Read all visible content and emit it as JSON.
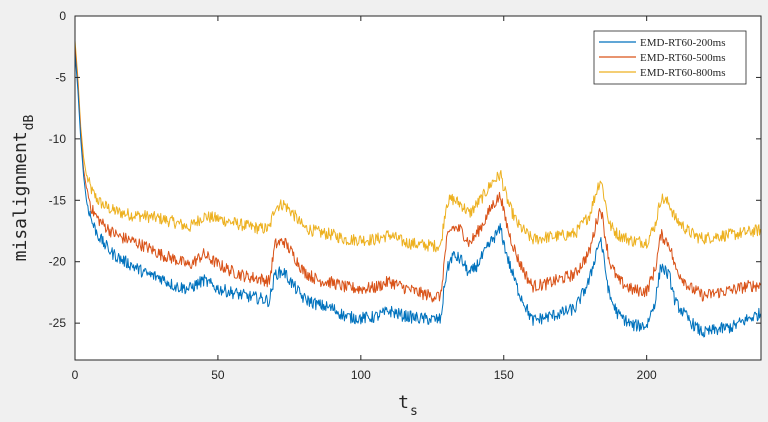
{
  "chart_data": {
    "type": "line",
    "xlabel": "t",
    "xlabel_sub": "s",
    "ylabel": "misalignment",
    "ylabel_sub": "dB",
    "xlim": [
      0,
      240
    ],
    "ylim": [
      -28,
      0
    ],
    "xticks": [
      0,
      50,
      100,
      150,
      200
    ],
    "yticks": [
      0,
      -5,
      -10,
      -15,
      -20,
      -25
    ],
    "grid": false,
    "legend_position": "top-right",
    "series": [
      {
        "name": "EMD-RT60-200ms",
        "color": "#0072BD",
        "x": [
          0,
          1,
          2,
          3,
          4,
          6,
          8,
          10,
          13,
          16,
          20,
          25,
          30,
          35,
          40,
          45,
          50,
          55,
          60,
          65,
          68,
          70,
          73,
          76,
          80,
          85,
          90,
          95,
          100,
          105,
          110,
          115,
          120,
          125,
          128,
          129,
          130,
          132,
          135,
          138,
          140,
          143,
          146,
          149,
          150,
          152,
          155,
          158,
          160,
          165,
          170,
          175,
          180,
          183,
          184,
          185,
          187,
          190,
          195,
          200,
          203,
          205,
          208,
          210,
          215,
          218,
          220,
          225,
          230,
          235,
          240
        ],
        "y": [
          -3,
          -6,
          -10,
          -13,
          -15,
          -16.8,
          -17.8,
          -18.5,
          -19.3,
          -19.8,
          -20.3,
          -21,
          -21.3,
          -22,
          -22.2,
          -21.5,
          -22.2,
          -22.5,
          -22.8,
          -23,
          -23.2,
          -21,
          -20.8,
          -21.8,
          -23,
          -23.5,
          -23.8,
          -24.5,
          -24.6,
          -24.5,
          -24,
          -24.4,
          -24.6,
          -24.7,
          -24.7,
          -22.5,
          -20.8,
          -19.5,
          -19.8,
          -21,
          -20.5,
          -19.4,
          -18.2,
          -17.3,
          -18.5,
          -20.2,
          -22.3,
          -23.8,
          -24.8,
          -24.5,
          -24.2,
          -23.8,
          -21.5,
          -18.6,
          -18.2,
          -19.8,
          -22.8,
          -24.3,
          -25.2,
          -25.2,
          -23.2,
          -20.3,
          -21.2,
          -23.3,
          -24.8,
          -25.5,
          -25.8,
          -25.5,
          -25.3,
          -24.7,
          -24.2
        ]
      },
      {
        "name": "EMD-RT60-500ms",
        "color": "#D95319",
        "x": [
          0,
          1,
          2,
          3,
          4,
          6,
          8,
          10,
          13,
          16,
          20,
          25,
          30,
          35,
          40,
          45,
          50,
          55,
          60,
          65,
          68,
          70,
          73,
          76,
          80,
          85,
          90,
          95,
          100,
          105,
          110,
          115,
          120,
          125,
          128,
          129,
          130,
          132,
          135,
          138,
          140,
          143,
          146,
          149,
          150,
          152,
          155,
          158,
          160,
          165,
          170,
          175,
          180,
          183,
          184,
          185,
          187,
          190,
          195,
          200,
          203,
          205,
          208,
          210,
          215,
          218,
          220,
          225,
          230,
          235,
          240
        ],
        "y": [
          -2.5,
          -5.5,
          -9.5,
          -12.5,
          -14,
          -15.8,
          -16.5,
          -17,
          -17.6,
          -18,
          -18.3,
          -18.8,
          -19.4,
          -19.8,
          -20.3,
          -19.4,
          -20.2,
          -20.8,
          -21.2,
          -21.4,
          -21.6,
          -18.6,
          -18.3,
          -19.3,
          -20.8,
          -21.5,
          -21.7,
          -22.1,
          -22.2,
          -22.1,
          -21.6,
          -22.1,
          -22.5,
          -22.8,
          -22.8,
          -20.4,
          -18.3,
          -17.2,
          -17.4,
          -18.5,
          -17.9,
          -16.8,
          -15.4,
          -14.6,
          -16,
          -17.8,
          -19.8,
          -21.2,
          -22,
          -21.8,
          -21.4,
          -21,
          -19.2,
          -16.2,
          -15.6,
          -17.2,
          -20,
          -21.5,
          -22.3,
          -22.4,
          -20.6,
          -17.8,
          -18.6,
          -20.5,
          -22.1,
          -22.5,
          -22.8,
          -22.5,
          -22.3,
          -22,
          -21.9
        ]
      },
      {
        "name": "EMD-RT60-800ms",
        "color": "#EDB120",
        "x": [
          0,
          1,
          2,
          3,
          4,
          6,
          8,
          10,
          13,
          16,
          20,
          25,
          30,
          35,
          40,
          45,
          50,
          55,
          60,
          65,
          68,
          70,
          73,
          76,
          80,
          85,
          90,
          95,
          100,
          105,
          110,
          115,
          120,
          125,
          128,
          129,
          130,
          132,
          135,
          138,
          140,
          143,
          146,
          149,
          150,
          152,
          155,
          158,
          160,
          165,
          170,
          175,
          180,
          183,
          184,
          185,
          187,
          190,
          195,
          200,
          203,
          205,
          208,
          210,
          215,
          218,
          220,
          225,
          230,
          235,
          240
        ],
        "y": [
          -2,
          -5,
          -9,
          -11.5,
          -13,
          -14.3,
          -15,
          -15.4,
          -15.8,
          -16,
          -16.2,
          -16.3,
          -16.5,
          -16.8,
          -17.2,
          -16.3,
          -16.5,
          -16.8,
          -17.1,
          -17.3,
          -17.3,
          -15.5,
          -15.3,
          -16,
          -17.2,
          -17.6,
          -17.8,
          -18.2,
          -18.2,
          -18.2,
          -17.8,
          -18.4,
          -18.6,
          -18.7,
          -18.7,
          -16.8,
          -15.2,
          -14.9,
          -15.3,
          -16.1,
          -15.5,
          -14.6,
          -13.5,
          -12.9,
          -14,
          -15.5,
          -17,
          -17.7,
          -18.2,
          -18,
          -17.9,
          -17.7,
          -16.2,
          -13.8,
          -13.3,
          -14.5,
          -17,
          -17.8,
          -18.3,
          -18.4,
          -17,
          -14.8,
          -15.3,
          -16.5,
          -17.6,
          -18,
          -18.1,
          -17.9,
          -17.8,
          -17.6,
          -17.4
        ]
      }
    ]
  }
}
